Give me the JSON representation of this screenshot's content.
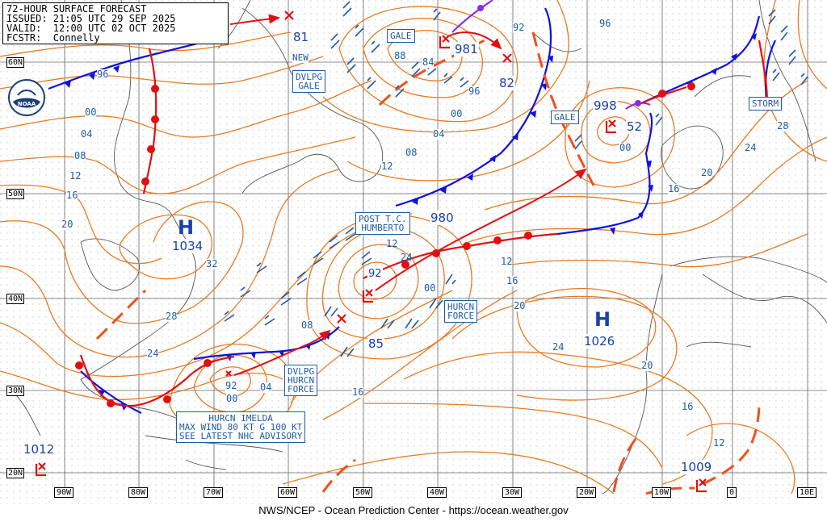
{
  "header": {
    "line1": "72-HOUR SURFACE FORECAST",
    "line2": "ISSUED: 21:05 UTC 29 SEP 2025",
    "line3": "VALID:  12:00 UTC 02 OCT 2025",
    "line4": "FCSTR:  Connelly"
  },
  "footer": "NWS/NCEP - Ocean Prediction Center - https://ocean.weather.gov",
  "lat_labels": [
    "60N",
    "50N",
    "40N",
    "30N",
    "20N"
  ],
  "lon_labels": [
    "90W",
    "80W",
    "70W",
    "60W",
    "50W",
    "40W",
    "30W",
    "20W",
    "10W",
    "0",
    "10E"
  ],
  "highs": [
    {
      "letter": "H",
      "pressure": "1034"
    },
    {
      "letter": "H",
      "pressure": "1026"
    }
  ],
  "lows": [
    {
      "pressure": "981"
    },
    {
      "pressure": "998"
    },
    {
      "pressure": "980"
    },
    {
      "pressure": "1012"
    },
    {
      "pressure": "1009"
    },
    {
      "pressure": "92"
    }
  ],
  "future_positions": [
    "81",
    "82",
    "52",
    "85"
  ],
  "new_label": "NEW",
  "warning_boxes": {
    "gale1": "GALE",
    "dvlpg_gale": "DVLPG\nGALE",
    "gale2": "GALE",
    "storm": "STORM",
    "post_tc": "POST T.C.\nHUMBERTO",
    "hurcn_force": "HURCN\nFORCE",
    "dvlpg_hurcn": "DVLPG\nHURCN\nFORCE",
    "imelda": "HURCN IMELDA\nMAX WIND 80 KT G 100 KT\nSEE LATEST NHC ADVISORY"
  },
  "isobar_labels": [
    "96",
    "00",
    "04",
    "08",
    "12",
    "16",
    "20",
    "24",
    "28",
    "32",
    "88",
    "84",
    "96",
    "00",
    "04",
    "08",
    "12",
    "92",
    "96",
    "00",
    "12",
    "16",
    "20",
    "24",
    "20",
    "16",
    "12",
    "08",
    "04",
    "00",
    "16",
    "24",
    "28",
    "20",
    "16",
    "12",
    "00",
    "24",
    "92"
  ],
  "colors": {
    "isobar": "#e87a22",
    "cold_front": "#1010e0",
    "warm_front": "#e01010",
    "occluded_front": "#8a2be2",
    "trough": "#f0501a",
    "text": "#1f5aa6",
    "grid": "#000000"
  }
}
